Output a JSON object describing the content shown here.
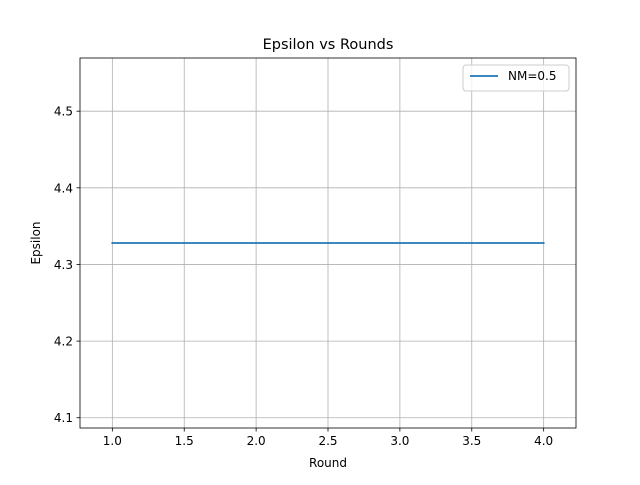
{
  "chart_data": {
    "type": "line",
    "title": "Epsilon vs Rounds",
    "xlabel": "Round",
    "ylabel": "Epsilon",
    "x": [
      1,
      2,
      3,
      4
    ],
    "series": [
      {
        "name": "NM=0.5",
        "values": [
          4.328,
          4.328,
          4.328,
          4.328
        ],
        "color": "#1f77b4"
      }
    ],
    "xlim": [
      0.775,
      4.225
    ],
    "ylim": [
      4.0866,
      4.5694
    ],
    "xticks": [
      1.0,
      1.5,
      2.0,
      2.5,
      3.0,
      3.5,
      4.0
    ],
    "xtick_labels": [
      "1.0",
      "1.5",
      "2.0",
      "2.5",
      "3.0",
      "3.5",
      "4.0"
    ],
    "yticks": [
      4.1,
      4.2,
      4.3,
      4.4,
      4.5
    ],
    "ytick_labels": [
      "4.1",
      "4.2",
      "4.3",
      "4.4",
      "4.5"
    ],
    "grid": true,
    "legend": "upper right",
    "grid_color": "#b0b0b0",
    "axes_color": "#000000"
  }
}
